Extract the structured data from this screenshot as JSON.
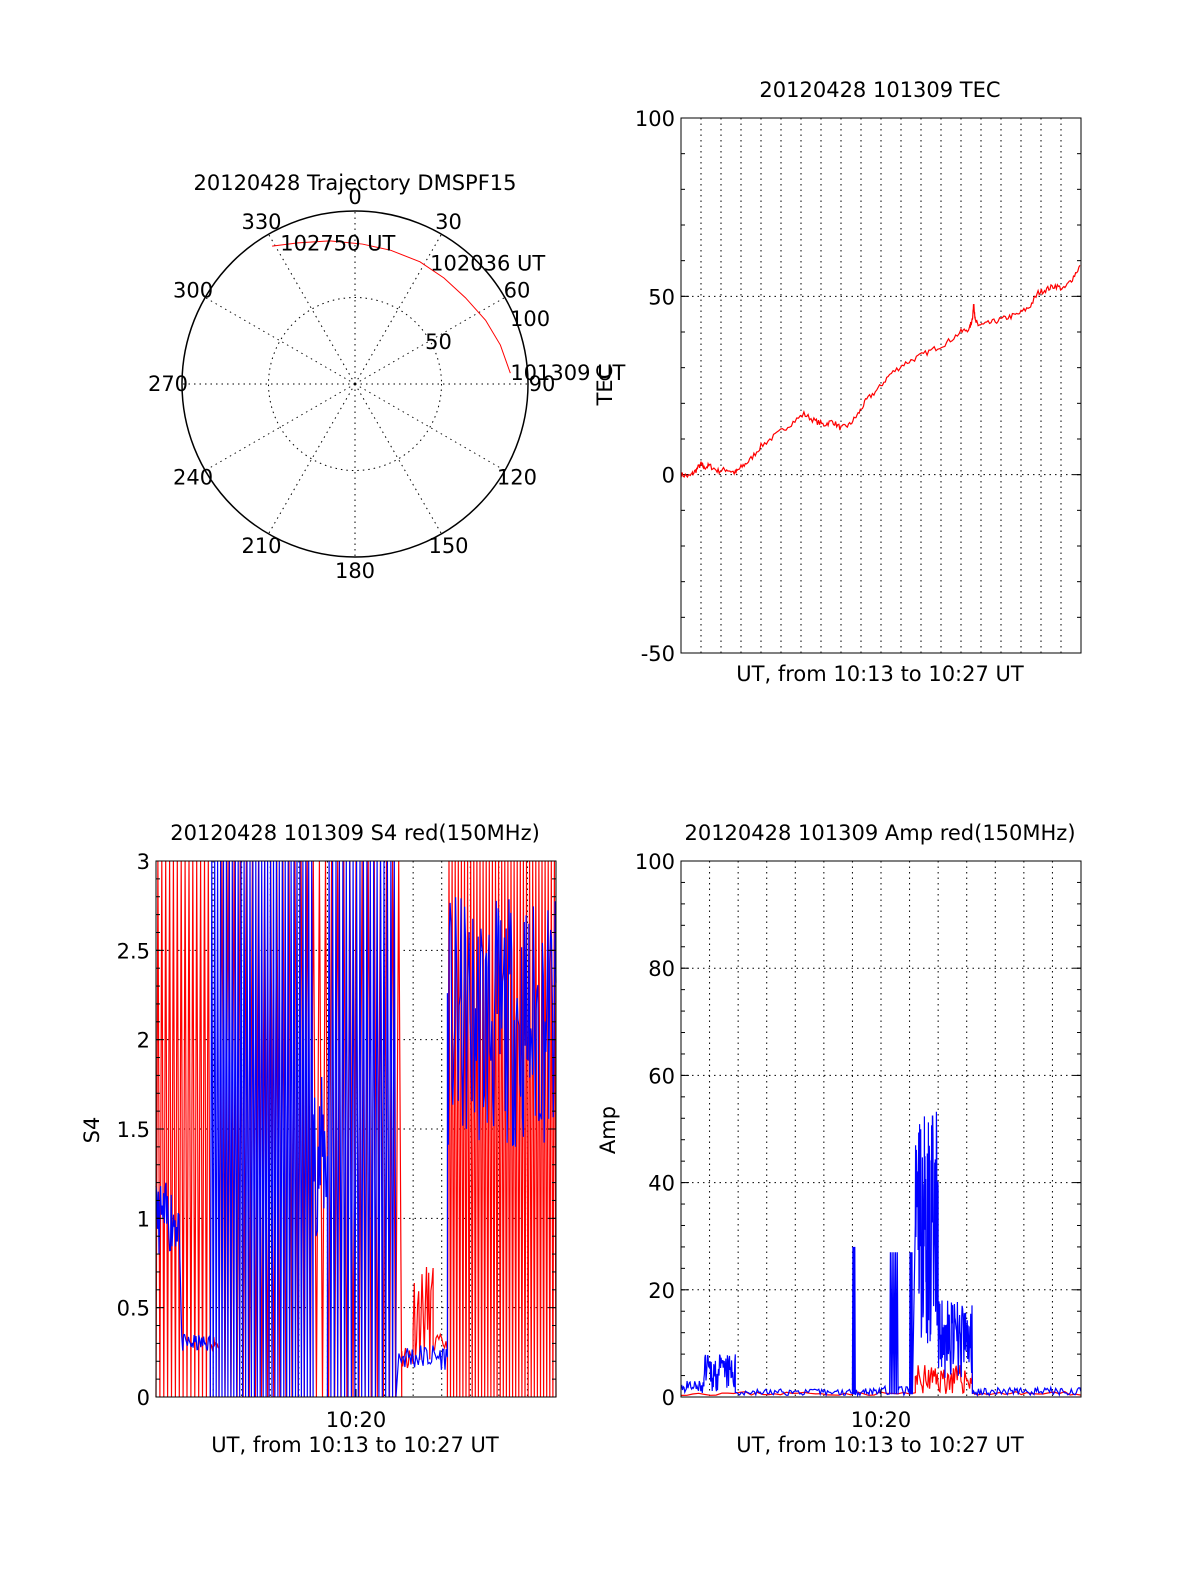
{
  "chart_data": [
    {
      "type": "polar",
      "title": "20120428 Trajectory DMSPF15",
      "angle_labels": [
        "0",
        "30",
        "60",
        "90",
        "120",
        "150",
        "180",
        "210",
        "240",
        "270",
        "300",
        "330"
      ],
      "radius_labels": [
        "50",
        "100"
      ],
      "radial_axis_label": "TEC",
      "trajectory_color": "#ff0000",
      "trajectory": [
        {
          "az": 86,
          "r": 90
        },
        {
          "az": 75,
          "r": 87
        },
        {
          "az": 64,
          "r": 84
        },
        {
          "az": 52,
          "r": 81
        },
        {
          "az": 40,
          "r": 80
        },
        {
          "az": 28,
          "r": 80
        },
        {
          "az": 15,
          "r": 80
        },
        {
          "az": 3,
          "r": 81
        },
        {
          "az": -10,
          "r": 84
        },
        {
          "az": -22,
          "r": 88
        },
        {
          "az": -31,
          "r": 93
        }
      ],
      "annotations": [
        {
          "text": "102750 UT",
          "az": -28,
          "r": 92
        },
        {
          "text": "102036 UT",
          "az": 32,
          "r": 82
        },
        {
          "text": "101309 UT",
          "az": 86,
          "r": 90
        }
      ]
    },
    {
      "type": "line",
      "title": "20120428 101309 TEC",
      "xlabel": "UT, from 10:13 to 10:27 UT",
      "ylabel": "",
      "xlim": [
        0,
        14
      ],
      "ylim": [
        -50,
        100
      ],
      "yticks": [
        "-50",
        "0",
        "50",
        "100"
      ],
      "grid": true,
      "xgrid_minutes": [
        0.7,
        1.4,
        2.1,
        2.8,
        3.5,
        4.2,
        4.9,
        5.6,
        6.3,
        7.0,
        7.7,
        8.4,
        9.1,
        9.8,
        10.5,
        11.2,
        11.9,
        12.6,
        13.3
      ],
      "series": [
        {
          "color": "#ff0000",
          "x": [
            0,
            0.3,
            0.5,
            0.7,
            0.8,
            1.0,
            1.3,
            1.6,
            1.9,
            2.1,
            2.4,
            2.8,
            3.3,
            3.8,
            4.3,
            4.7,
            5.0,
            5.3,
            5.6,
            5.9,
            6.2,
            6.5,
            6.9,
            7.3,
            7.8,
            8.3,
            8.8,
            9.3,
            9.8,
            10.1,
            10.2,
            10.25,
            10.3,
            10.4,
            10.6,
            11.0,
            11.4,
            11.8,
            12.2,
            12.5,
            12.8,
            13.1,
            13.4,
            13.7,
            14.0
          ],
          "y": [
            0,
            -0.5,
            1,
            3,
            2,
            2.5,
            1,
            1.5,
            0.5,
            2,
            4,
            8,
            11,
            14,
            17,
            15,
            14,
            15,
            13,
            14,
            17,
            21,
            24,
            28,
            31,
            33,
            35,
            37,
            40,
            41,
            44,
            48,
            43,
            42,
            42,
            43,
            44,
            45,
            47,
            51,
            52,
            53,
            52,
            55,
            59
          ]
        }
      ]
    },
    {
      "type": "line",
      "title": "20120428 101309 S4 red(150MHz)",
      "xlabel": "UT, from 10:13 to 10:27 UT",
      "ylabel": "S4",
      "xlim": [
        0,
        14
      ],
      "ylim": [
        0,
        3
      ],
      "yticks": [
        "0",
        "0.5",
        "1",
        "1.5",
        "2",
        "2.5",
        "3"
      ],
      "xticks": [
        {
          "x": 7,
          "label": "10:20"
        }
      ],
      "grid": true,
      "xgrid_minutes": [
        2,
        3,
        4,
        5,
        6,
        7,
        8,
        9,
        10,
        11,
        12,
        13
      ],
      "series": [
        {
          "color": "#ff0000",
          "segments": [
            {
              "x0": 0.0,
              "x1": 1.9,
              "y0": 0.0,
              "y1": 3.0,
              "n": 28
            },
            {
              "x0": 1.9,
              "x1": 2.2,
              "y0": 0.25,
              "y1": 0.35,
              "n": 10,
              "mode": "noise"
            },
            {
              "x0": 2.2,
              "x1": 8.6,
              "y0": 0.0,
              "y1": 3.0,
              "n": 60
            },
            {
              "x0": 8.6,
              "x1": 9.0,
              "y0": 0.15,
              "y1": 0.3,
              "n": 12,
              "mode": "noise"
            },
            {
              "x0": 9.0,
              "x1": 9.7,
              "y0": 0.2,
              "y1": 0.75,
              "n": 18,
              "mode": "noise"
            },
            {
              "x0": 9.7,
              "x1": 10.2,
              "y0": 0.25,
              "y1": 0.35,
              "n": 10,
              "mode": "noise"
            },
            {
              "x0": 10.2,
              "x1": 14.0,
              "y0": 0.0,
              "y1": 3.0,
              "n": 70
            }
          ]
        },
        {
          "color": "#0000ff",
          "segments": [
            {
              "x0": 0.0,
              "x1": 0.8,
              "y0": 0.8,
              "y1": 1.2,
              "n": 30,
              "mode": "noise"
            },
            {
              "x0": 0.9,
              "x1": 1.9,
              "y0": 0.25,
              "y1": 0.35,
              "n": 30,
              "mode": "noise"
            },
            {
              "x0": 1.9,
              "x1": 5.5,
              "y0": 0.0,
              "y1": 3.0,
              "n": 70
            },
            {
              "x0": 5.5,
              "x1": 6.0,
              "y0": 0.9,
              "y1": 1.8,
              "n": 20,
              "mode": "noise"
            },
            {
              "x0": 6.0,
              "x1": 8.4,
              "y0": 0.0,
              "y1": 3.0,
              "n": 40
            },
            {
              "x0": 8.5,
              "x1": 10.2,
              "y0": 0.15,
              "y1": 0.3,
              "n": 40,
              "mode": "noise"
            },
            {
              "x0": 10.2,
              "x1": 14.0,
              "y0": 1.4,
              "y1": 2.8,
              "n": 120,
              "mode": "noise"
            }
          ]
        }
      ]
    },
    {
      "type": "line",
      "title": "20120428 101309 Amp red(150MHz)",
      "xlabel": "UT, from 10:13 to 10:27 UT",
      "ylabel": "Amp",
      "xlim": [
        0,
        14
      ],
      "ylim": [
        0,
        100
      ],
      "yticks": [
        "0",
        "20",
        "40",
        "60",
        "80",
        "100"
      ],
      "xticks": [
        {
          "x": 7,
          "label": "10:20"
        }
      ],
      "grid": true,
      "xgrid_minutes": [
        1,
        2,
        3,
        4,
        5,
        6,
        7,
        8,
        9,
        10,
        11,
        12,
        13
      ],
      "series": [
        {
          "color": "#ff0000",
          "segments": [
            {
              "x0": 0.0,
              "x1": 8.2,
              "y0": 0.3,
              "y1": 1.0,
              "n": 40,
              "mode": "noise"
            },
            {
              "x0": 8.2,
              "x1": 10.2,
              "y0": 0.5,
              "y1": 6.0,
              "n": 60,
              "mode": "noise"
            },
            {
              "x0": 10.2,
              "x1": 14.0,
              "y0": 0.3,
              "y1": 1.0,
              "n": 20,
              "mode": "noise"
            }
          ]
        },
        {
          "color": "#0000ff",
          "segments": [
            {
              "x0": 0.0,
              "x1": 0.8,
              "y0": 0.5,
              "y1": 3.0,
              "n": 30,
              "mode": "noise"
            },
            {
              "x0": 0.8,
              "x1": 1.9,
              "y0": 1.0,
              "y1": 8.0,
              "n": 60,
              "mode": "noise"
            },
            {
              "x0": 1.9,
              "x1": 6.0,
              "y0": 0.3,
              "y1": 1.5,
              "n": 80,
              "mode": "noise"
            },
            {
              "x0": 6.0,
              "x1": 6.1,
              "y0": 0.5,
              "y1": 28.0,
              "n": 6
            },
            {
              "x0": 6.1,
              "x1": 7.3,
              "y0": 0.3,
              "y1": 2.0,
              "n": 30,
              "mode": "noise"
            },
            {
              "x0": 7.3,
              "x1": 7.6,
              "y0": 0.5,
              "y1": 27.0,
              "n": 10
            },
            {
              "x0": 7.6,
              "x1": 8.0,
              "y0": 0.3,
              "y1": 2.0,
              "n": 10,
              "mode": "noise"
            },
            {
              "x0": 8.0,
              "x1": 8.1,
              "y0": 0.5,
              "y1": 27.0,
              "n": 6
            },
            {
              "x0": 8.2,
              "x1": 9.0,
              "y0": 10.0,
              "y1": 54.0,
              "n": 80,
              "mode": "noise"
            },
            {
              "x0": 9.0,
              "x1": 10.2,
              "y0": 3.0,
              "y1": 18.0,
              "n": 80,
              "mode": "noise"
            },
            {
              "x0": 10.2,
              "x1": 14.0,
              "y0": 0.3,
              "y1": 1.8,
              "n": 90,
              "mode": "noise"
            }
          ]
        }
      ]
    }
  ]
}
